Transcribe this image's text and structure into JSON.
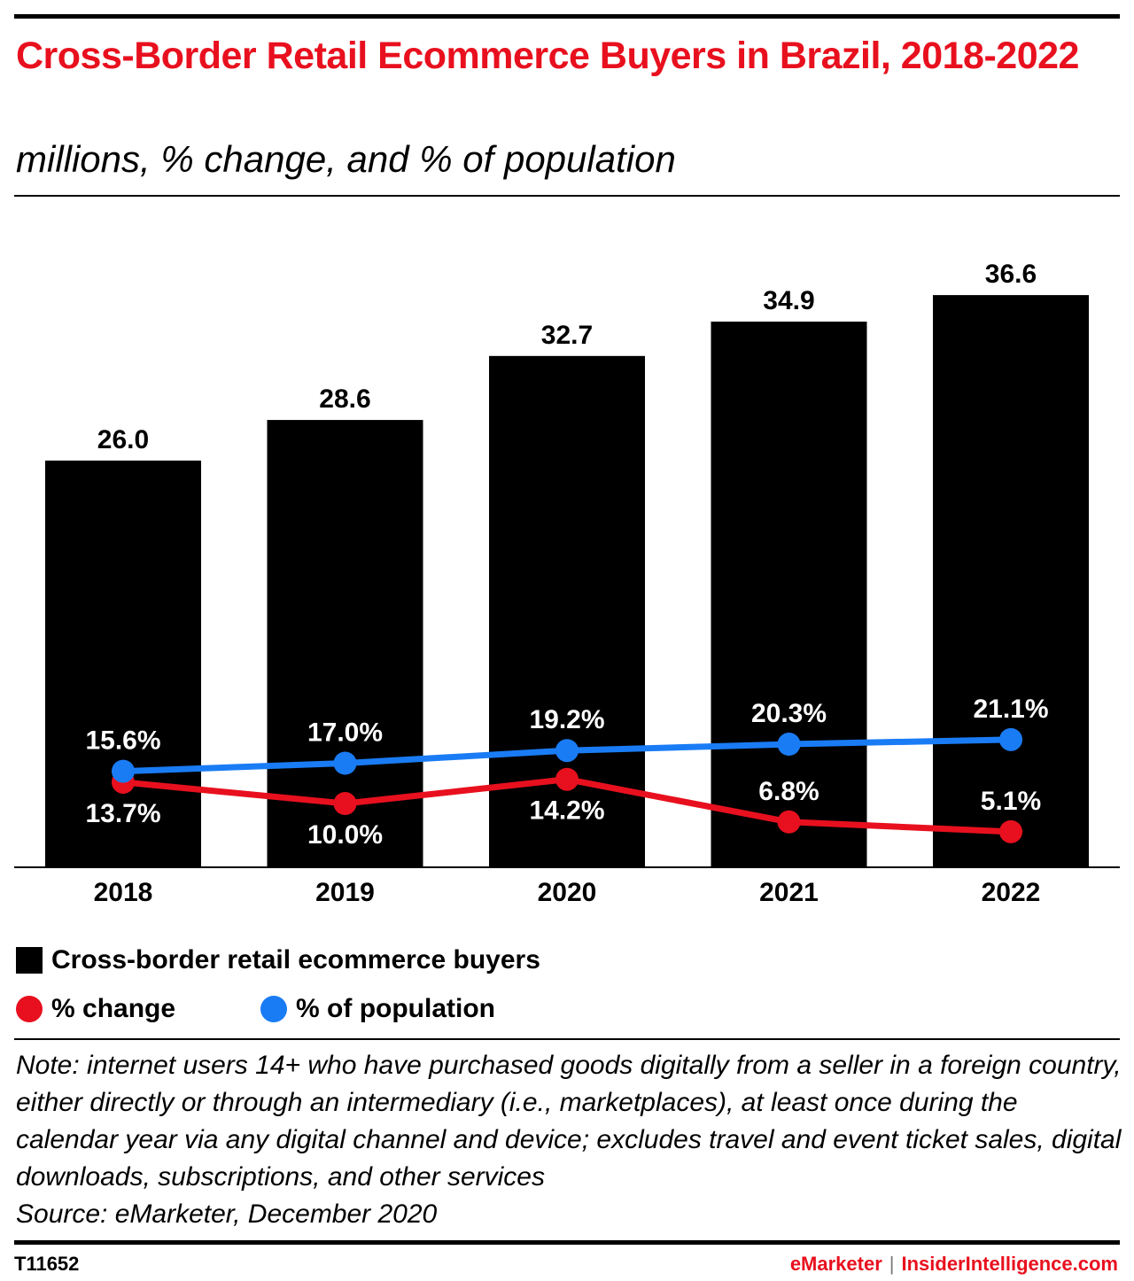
{
  "header": {
    "title": "Cross-Border Retail Ecommerce Buyers in Brazil, 2018-2022",
    "subtitle": "millions, % change, and % of population"
  },
  "chart_data": {
    "type": "bar",
    "categories": [
      "2018",
      "2019",
      "2020",
      "2021",
      "2022"
    ],
    "series": [
      {
        "name": "Cross-border retail ecommerce buyers",
        "kind": "bar",
        "color": "#000000",
        "values": [
          26.0,
          28.6,
          32.7,
          34.9,
          36.6
        ],
        "labels": [
          "26.0",
          "28.6",
          "32.7",
          "34.9",
          "36.6"
        ]
      },
      {
        "name": "% change",
        "kind": "line",
        "color": "#e8101e",
        "values": [
          13.7,
          10.0,
          14.2,
          6.8,
          5.1
        ],
        "labels": [
          "13.7%",
          "10.0%",
          "14.2%",
          "6.8%",
          "5.1%"
        ]
      },
      {
        "name": "% of population",
        "kind": "line",
        "color": "#1a7cf5",
        "values": [
          15.6,
          17.0,
          19.2,
          20.3,
          21.1
        ],
        "labels": [
          "15.6%",
          "17.0%",
          "19.2%",
          "20.3%",
          "21.1%"
        ]
      }
    ],
    "legend_position": "bottom-left",
    "grid": false
  },
  "legend": {
    "bars_label": "Cross-border retail ecommerce buyers",
    "change_label": "% change",
    "population_label": "% of population"
  },
  "note": "Note: internet users 14+ who have purchased goods digitally from a seller in a foreign country, either directly or through an intermediary (i.e., marketplaces), at least once during the calendar year via any digital channel and device; excludes travel and event ticket sales, digital downloads, subscriptions, and other services",
  "source": "Source: eMarketer, December 2020",
  "footer": {
    "chart_id": "T11652",
    "brand_left": "eMarketer",
    "separator": "|",
    "brand_right": "InsiderIntelligence.com"
  }
}
